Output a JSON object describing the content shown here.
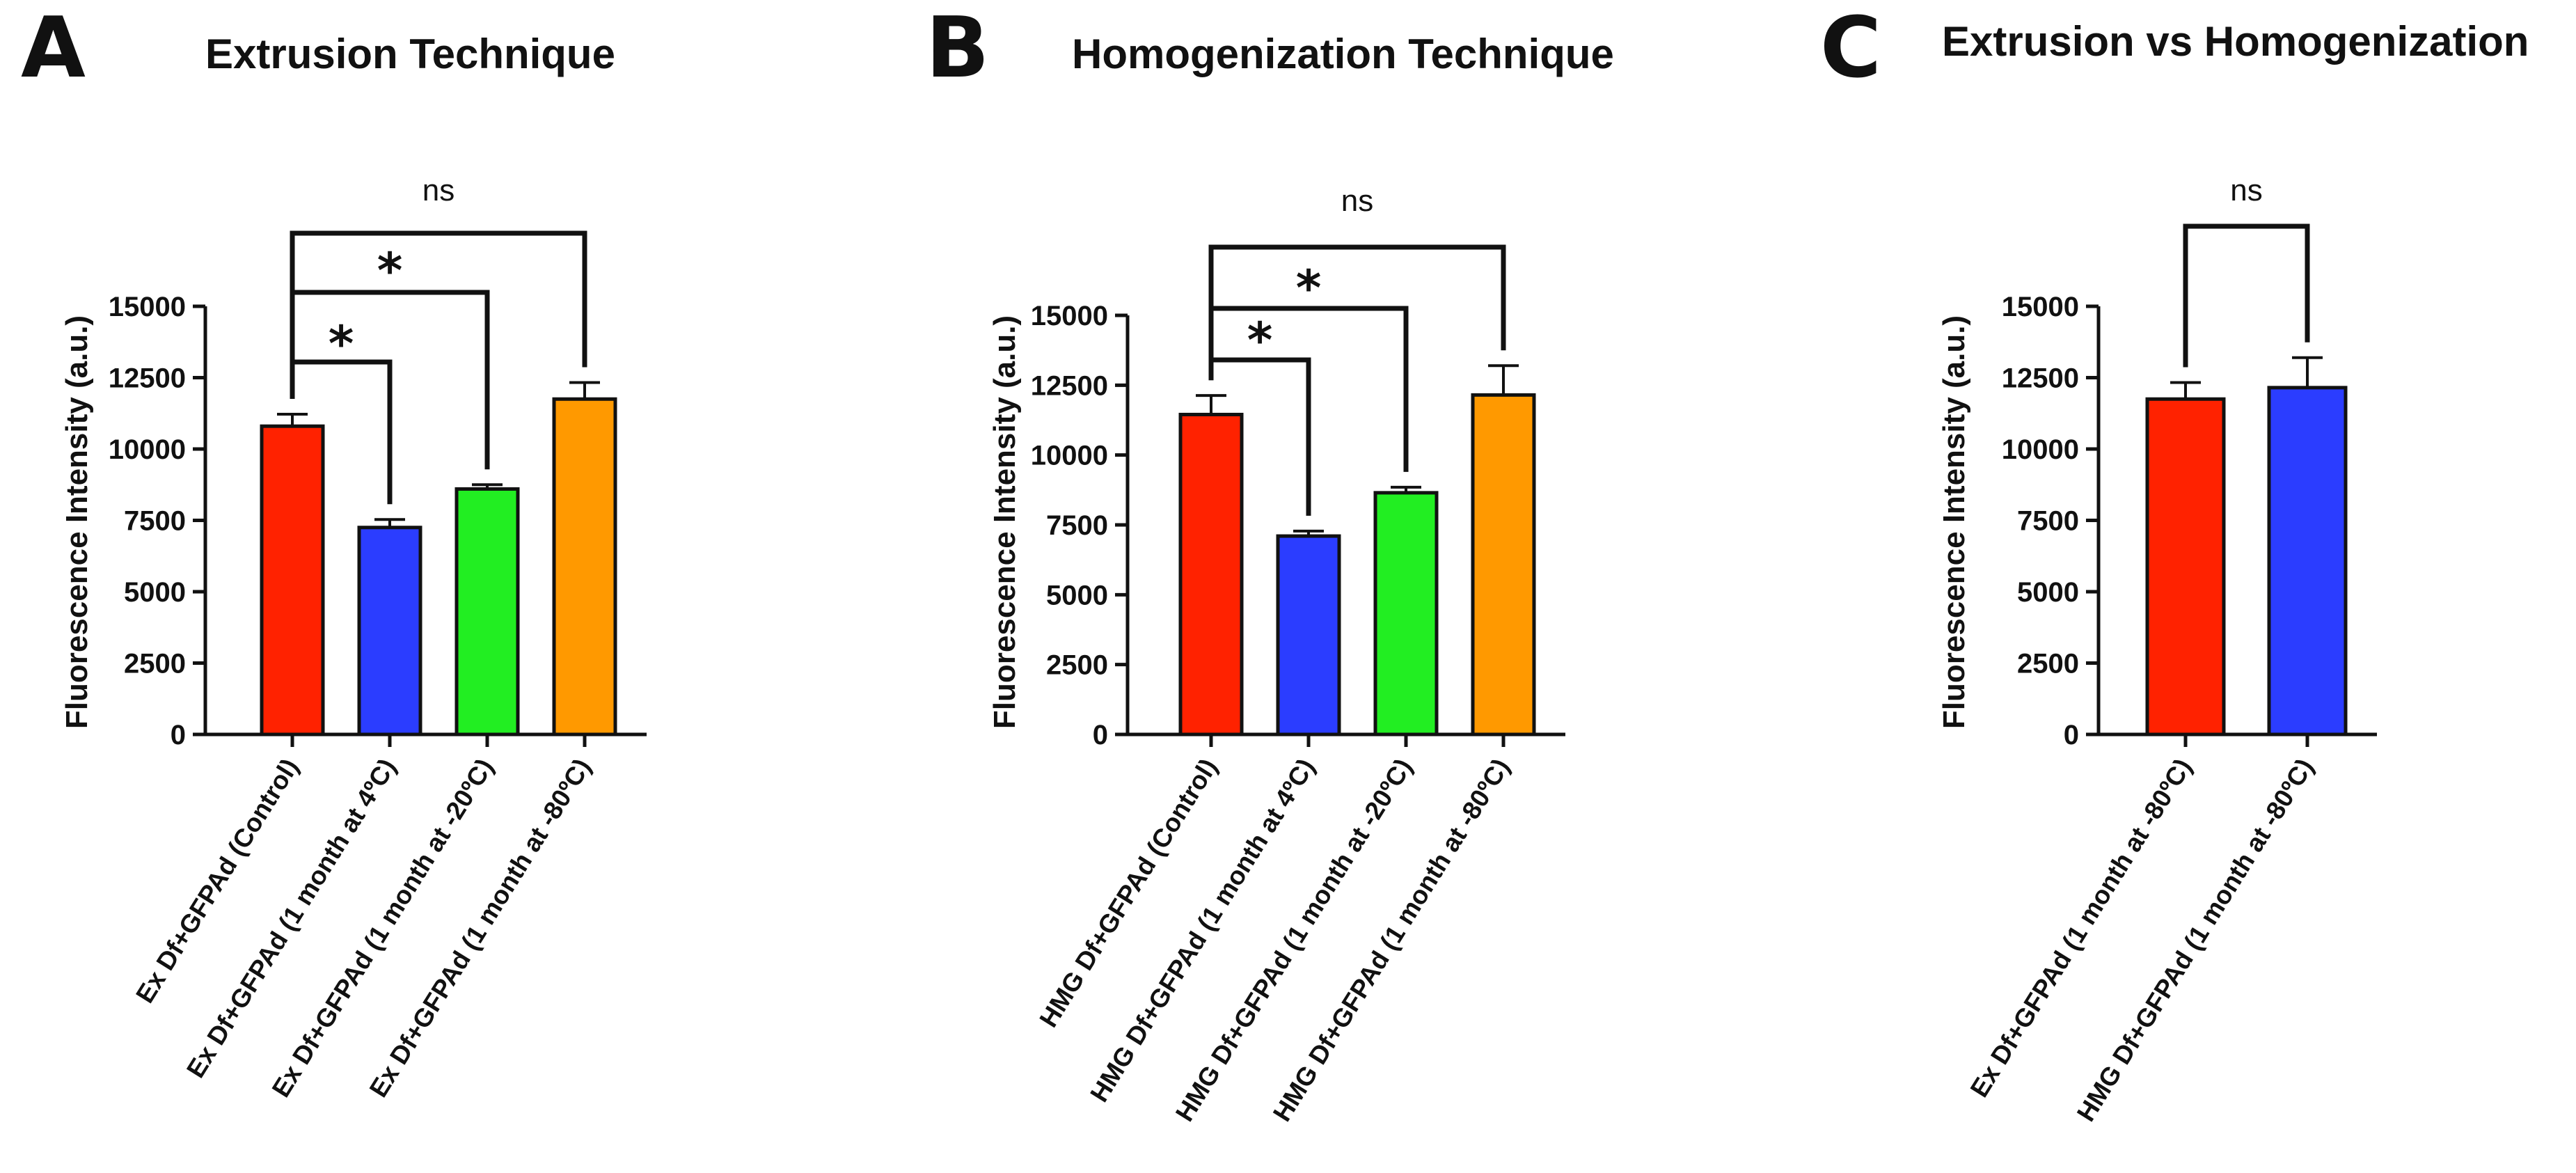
{
  "chart_data": [
    {
      "type": "bar",
      "panel": "A",
      "title": "Extrusion Technique",
      "xlabel": "",
      "ylabel": "Fluorescence Intensity (a.u.)",
      "ylim": [
        0,
        15000
      ],
      "yticks": [
        0,
        2500,
        5000,
        7500,
        10000,
        12500,
        15000
      ],
      "yticklabels": [
        "0",
        "2500",
        "5000",
        "7500",
        "10000",
        "12500",
        "15000"
      ],
      "categories": [
        "Ex Df+GFPAd (Control)",
        "Ex Df+GFPAd (1 month at 4ºC)",
        "Ex Df+GFPAd (1 month at -20ºC)",
        "Ex Df+GFPAd (1 month at -80ºC)"
      ],
      "values": [
        10800,
        7250,
        8600,
        11750
      ],
      "errors": [
        420,
        280,
        150,
        580
      ],
      "colors": [
        "#ff2200",
        "#2b3dff",
        "#22ee22",
        "#ff9900"
      ],
      "significance": [
        {
          "from": 0,
          "to": 1,
          "label": "*"
        },
        {
          "from": 0,
          "to": 2,
          "label": "*"
        },
        {
          "from": 0,
          "to": 3,
          "label": "ns"
        }
      ]
    },
    {
      "type": "bar",
      "panel": "B",
      "title": "Homogenization Technique",
      "xlabel": "",
      "ylabel": "Fluorescence Intensity (a.u.)",
      "ylim": [
        0,
        15000
      ],
      "yticks": [
        0,
        2500,
        5000,
        7500,
        10000,
        12500,
        15000
      ],
      "yticklabels": [
        "0",
        "2500",
        "5000",
        "7500",
        "10000",
        "12500",
        "15000"
      ],
      "categories": [
        "HMG Df+GFPAd (Control)",
        "HMG Df+GFPAd (1 month at 4ºC)",
        "HMG Df+GFPAd (1 month at -20ºC)",
        "HMG Df+GFPAd (1 month at -80ºC)"
      ],
      "values": [
        11450,
        7100,
        8650,
        12150
      ],
      "errors": [
        680,
        180,
        200,
        1050
      ],
      "colors": [
        "#ff2200",
        "#2b3dff",
        "#22ee22",
        "#ff9900"
      ],
      "significance": [
        {
          "from": 0,
          "to": 1,
          "label": "*"
        },
        {
          "from": 0,
          "to": 2,
          "label": "*"
        },
        {
          "from": 0,
          "to": 3,
          "label": "ns"
        }
      ]
    },
    {
      "type": "bar",
      "panel": "C",
      "title": "Extrusion vs Homogenization",
      "xlabel": "",
      "ylabel": "Fluorescence Intensity (a.u.)",
      "ylim": [
        0,
        15000
      ],
      "yticks": [
        0,
        2500,
        5000,
        7500,
        10000,
        12500,
        15000
      ],
      "yticklabels": [
        "0",
        "2500",
        "5000",
        "7500",
        "10000",
        "12500",
        "15000"
      ],
      "categories": [
        "Ex Df+GFPAd (1 month at -80ºC)",
        "HMG Df+GFPAd (1 month at -80ºC)"
      ],
      "values": [
        11750,
        12150
      ],
      "errors": [
        580,
        1050
      ],
      "colors": [
        "#ff2200",
        "#2b3dff"
      ],
      "significance": [
        {
          "from": 0,
          "to": 1,
          "label": "ns"
        }
      ]
    }
  ]
}
